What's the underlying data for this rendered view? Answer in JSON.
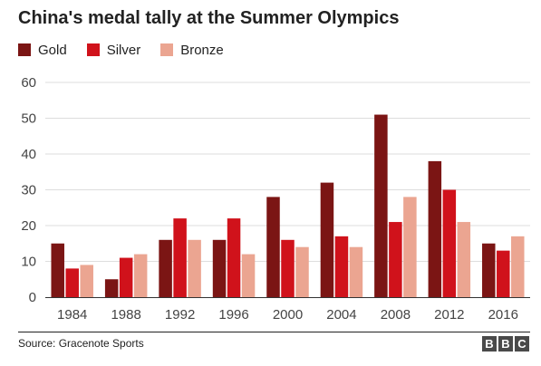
{
  "title": "China's medal tally at the Summer Olympics",
  "legend": {
    "gold": "Gold",
    "silver": "Silver",
    "bronze": "Bronze"
  },
  "colors": {
    "gold": "#7b1514",
    "silver": "#d0121b",
    "bronze": "#eba591",
    "grid": "#dddddd",
    "axis": "#333333"
  },
  "source": "Source: Gracenote Sports",
  "logo": [
    "B",
    "B",
    "C"
  ],
  "chart_data": {
    "type": "bar",
    "title": "China's medal tally at the Summer Olympics",
    "xlabel": "",
    "ylabel": "",
    "categories": [
      "1984",
      "1988",
      "1992",
      "1996",
      "2000",
      "2004",
      "2008",
      "2012",
      "2016"
    ],
    "series": [
      {
        "name": "Gold",
        "values": [
          15,
          5,
          16,
          16,
          28,
          32,
          51,
          38,
          15
        ]
      },
      {
        "name": "Silver",
        "values": [
          8,
          11,
          22,
          22,
          16,
          17,
          21,
          30,
          13
        ]
      },
      {
        "name": "Bronze",
        "values": [
          9,
          12,
          16,
          12,
          14,
          14,
          28,
          21,
          17
        ]
      }
    ],
    "ylim": [
      0,
      60
    ],
    "yticks": [
      "0",
      "10",
      "20",
      "30",
      "40",
      "50",
      "60"
    ],
    "grid": true,
    "legend_position": "top-left"
  }
}
